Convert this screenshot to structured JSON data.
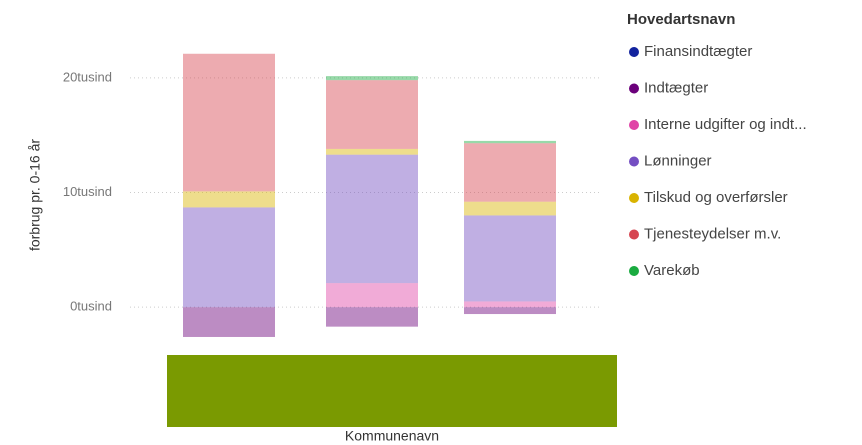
{
  "chart_data": {
    "type": "stacked_bar",
    "y_axis_title": "forbrug pr. 0-16 år",
    "x_axis_title": "Kommunenavn",
    "legend_title": "Hovedartsnavn",
    "categories": [
      null,
      null,
      null
    ],
    "ylim": [
      -3300,
      23300
    ],
    "yticks": [
      {
        "value": 0,
        "label": "0tusind"
      },
      {
        "value": 10000,
        "label": "10tusind"
      },
      {
        "value": 20000,
        "label": "20tusind"
      }
    ],
    "grid": true,
    "series": [
      {
        "name": "Finansindtægter",
        "color": "#12239E",
        "values": [
          0,
          0,
          0
        ]
      },
      {
        "name": "Indtægter",
        "color": "#6B007B",
        "values": [
          -2600,
          -1700,
          -600
        ]
      },
      {
        "name": "Interne udgifter og indt...",
        "color": "#E044A7",
        "values": [
          0,
          2100,
          500
        ]
      },
      {
        "name": "Lønninger",
        "color": "#744EC2",
        "values": [
          8700,
          11200,
          7500
        ]
      },
      {
        "name": "Tilskud og overførsler",
        "color": "#D9B300",
        "values": [
          1400,
          500,
          1200
        ]
      },
      {
        "name": "Tjenesteydelser m.v.",
        "color": "#D64550",
        "values": [
          12000,
          6000,
          5100
        ]
      },
      {
        "name": "Varekøb",
        "color": "#1AAB40",
        "values": [
          0,
          350,
          200
        ]
      }
    ]
  }
}
